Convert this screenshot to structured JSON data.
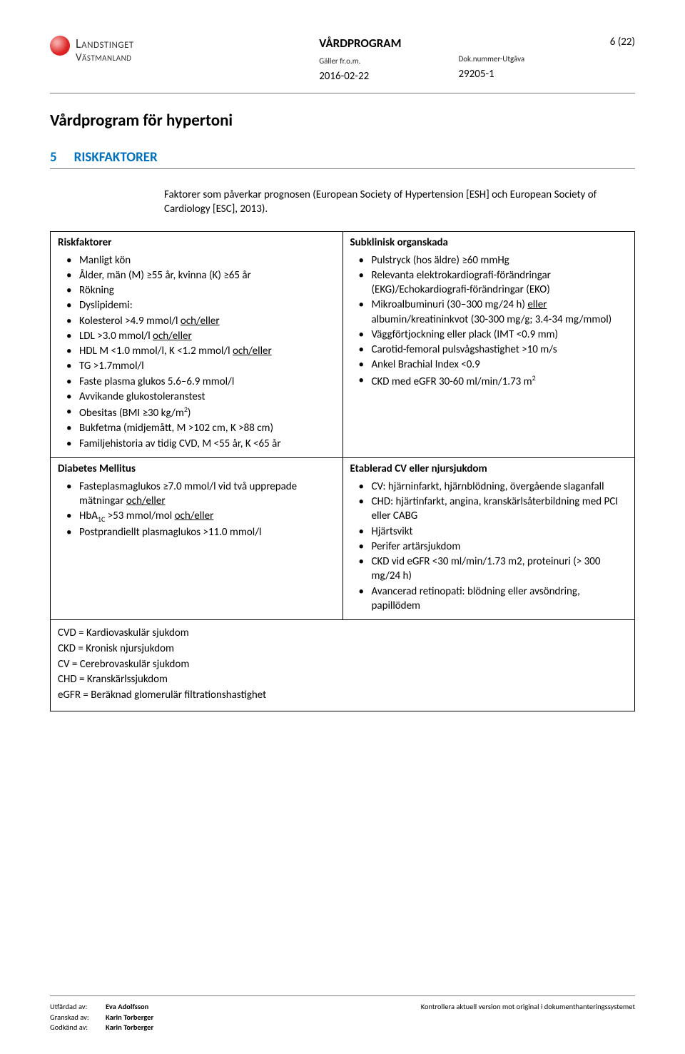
{
  "header": {
    "logo": {
      "line1": "Landstinget",
      "line2": "Västmanland"
    },
    "docType": "VÅRDPROGRAM",
    "page": "6 (22)",
    "leftLabel": "Gäller fr.o.m.",
    "rightLabel": "Dok.nummer-Utgåva",
    "date": "2016-02-22",
    "docNum": "29205-1"
  },
  "title": "Vårdprogram för hypertoni",
  "section": {
    "num": "5",
    "title": "RISKFAKTORER"
  },
  "intro": "Faktorer som påverkar prognosen (European Society of Hypertension [ESH] och European Society of Cardiology [ESC], 2013).",
  "table": {
    "r1c1": {
      "header": "Riskfaktorer",
      "items": [
        {
          "text": "Manligt kön"
        },
        {
          "text": "Ålder, män (M) ≥55 år, kvinna (K) ≥65 år"
        },
        {
          "text": "Rökning"
        },
        {
          "text": "Dyslipidemi:"
        },
        {
          "pre": "Kolesterol >4.9 mmol/l ",
          "u": "och/eller"
        },
        {
          "pre": "LDL >3.0 mmol/l ",
          "u": "och/eller"
        },
        {
          "pre": "HDL M <1.0 mmol/l, K <1.2 mmol/l ",
          "u": "och/eller"
        },
        {
          "text": "TG >1.7mmol/l"
        },
        {
          "text": "Faste plasma glukos 5.6–6.9 mmol/l"
        },
        {
          "text": "Avvikande glukostoleranstest"
        },
        {
          "html": "Obesitas (BMI ≥30 kg/m<span class='sup'>2</span>)"
        },
        {
          "text": "Bukfetma (midjemått, M >102 cm, K >88 cm)"
        },
        {
          "text": "Familjehistoria av tidig CVD, M <55 år, K <65 år"
        }
      ]
    },
    "r1c2": {
      "header": "Subklinisk organskada",
      "items": [
        {
          "text": "Pulstryck (hos äldre) ≥60 mmHg"
        },
        {
          "text": "Relevanta elektrokardiografi-förändringar (EKG)/Echokardiografi-förändringar (EKO)"
        },
        {
          "html": "Mikroalbuminuri (30–300 mg/24 h) <span class='u'>eller</span> albumin/kreatininkvot (30-300 mg/g; 3.4-34 mg/mmol)"
        },
        {
          "text": "Väggförtjockning eller plack (IMT <0.9 mm)"
        },
        {
          "text": "Carotid-femoral pulsvågshastighet >10 m/s"
        },
        {
          "text": "Ankel Brachial Index <0.9"
        },
        {
          "html": "CKD med eGFR 30-60 ml/min/1.73 m<span class='sup'>2</span>"
        }
      ]
    },
    "r2c1": {
      "header": "Diabetes Mellitus",
      "items": [
        {
          "html": "Fasteplasmaglukos ≥7.0 mmol/l vid två upprepade mätningar <span class='u'>och/eller</span>"
        },
        {
          "html": "HbA<span class='sub'>1C</span> >53 mmol/mol <span class='u'>och/eller</span>"
        },
        {
          "text": "Postprandiellt plasmaglukos >11.0 mmol/l"
        }
      ]
    },
    "r2c2": {
      "header": "Etablerad CV eller njursjukdom",
      "items": [
        {
          "text": "CV: hjärninfarkt, hjärnblödning, övergående slaganfall"
        },
        {
          "text": "CHD: hjärtinfarkt, angina, kranskärlsåterbildning med PCI eller CABG"
        },
        {
          "text": "Hjärtsvikt"
        },
        {
          "text": "Perifer artärsjukdom"
        },
        {
          "text": "CKD vid eGFR <30 ml/min/1.73 m2, proteinuri (> 300 mg/24 h)"
        },
        {
          "text": "Avancerad retinopati: blödning eller avsöndring, papillödem"
        }
      ]
    },
    "abbrev": [
      "CVD = Kardiovaskulär sjukdom",
      "CKD = Kronisk njursjukdom",
      "CV = Cerebrovaskulär sjukdom",
      "CHD = Kranskärlssjukdom",
      "eGFR = Beräknad glomerulär filtrationshastighet"
    ]
  },
  "footer": {
    "rows": [
      {
        "label": "Utfärdad av:",
        "name": "Eva Adolfsson"
      },
      {
        "label": "Granskad av:",
        "name": "Karin Torberger"
      },
      {
        "label": "Godkänd av:",
        "name": "Karin Torberger"
      }
    ],
    "note": "Kontrollera aktuell version mot original i dokumenthanteringssystemet"
  }
}
